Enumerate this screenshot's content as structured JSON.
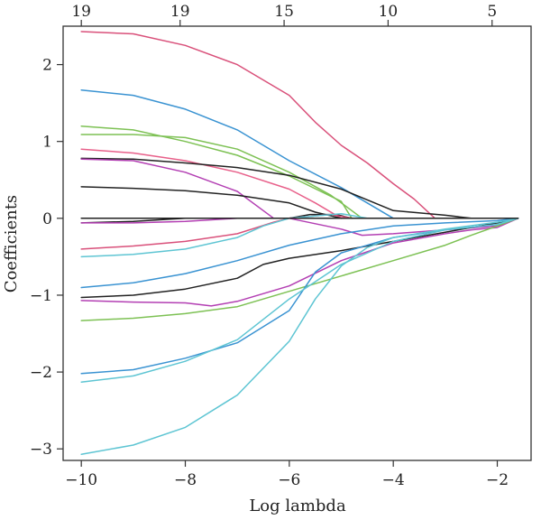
{
  "chart_data": {
    "type": "line",
    "xlabel": "Log lambda",
    "ylabel": "Coefficients",
    "xlim": [
      -10.35,
      -1.35
    ],
    "ylim": [
      -3.15,
      2.5
    ],
    "x_ticks": [
      -10,
      -8,
      -6,
      -4,
      -2
    ],
    "x_tick_labels": [
      "−10",
      "−8",
      "−6",
      "−4",
      "−2"
    ],
    "y_ticks": [
      -3,
      -2,
      -1,
      0,
      1,
      2
    ],
    "y_tick_labels": [
      "−3",
      "−2",
      "−1",
      "0",
      "1",
      "2"
    ],
    "top_axis": {
      "positions": [
        -10,
        -8.1,
        -6.1,
        -4.1,
        -2.1
      ],
      "labels": [
        "19",
        "19",
        "15",
        "10",
        "5"
      ]
    },
    "grid": false,
    "legend": "none",
    "series": [
      {
        "color": "#d9507a",
        "points": [
          [
            -10,
            2.43
          ],
          [
            -9,
            2.4
          ],
          [
            -8,
            2.25
          ],
          [
            -7,
            2.0
          ],
          [
            -6,
            1.6
          ],
          [
            -5.5,
            1.25
          ],
          [
            -5,
            0.95
          ],
          [
            -4.5,
            0.72
          ],
          [
            -4,
            0.45
          ],
          [
            -3.6,
            0.25
          ],
          [
            -3.2,
            0
          ]
        ]
      },
      {
        "color": "#3a93d2",
        "points": [
          [
            -10,
            1.67
          ],
          [
            -9,
            1.6
          ],
          [
            -8,
            1.42
          ],
          [
            -7,
            1.15
          ],
          [
            -6,
            0.75
          ],
          [
            -5,
            0.4
          ],
          [
            -4.5,
            0.2
          ],
          [
            -4,
            0
          ]
        ]
      },
      {
        "color": "#7dc154",
        "points": [
          [
            -10,
            1.2
          ],
          [
            -9,
            1.15
          ],
          [
            -8,
            1.0
          ],
          [
            -7,
            0.82
          ],
          [
            -6,
            0.55
          ],
          [
            -5,
            0.22
          ],
          [
            -4.8,
            0
          ]
        ]
      },
      {
        "color": "#7dc154",
        "points": [
          [
            -10,
            1.09
          ],
          [
            -9,
            1.09
          ],
          [
            -8,
            1.05
          ],
          [
            -7,
            0.9
          ],
          [
            -6,
            0.6
          ],
          [
            -5.2,
            0.3
          ],
          [
            -4.6,
            0
          ]
        ]
      },
      {
        "color": "#e8608a",
        "points": [
          [
            -10,
            0.9
          ],
          [
            -9,
            0.85
          ],
          [
            -8,
            0.75
          ],
          [
            -7,
            0.6
          ],
          [
            -6,
            0.38
          ],
          [
            -5.5,
            0.2
          ],
          [
            -5,
            0
          ]
        ]
      },
      {
        "color": "#222222",
        "points": [
          [
            -10,
            0.78
          ],
          [
            -9,
            0.77
          ],
          [
            -8,
            0.72
          ],
          [
            -7,
            0.66
          ],
          [
            -6,
            0.56
          ],
          [
            -5,
            0.38
          ],
          [
            -4,
            0.1
          ],
          [
            -3,
            0.04
          ],
          [
            -2.5,
            0
          ]
        ]
      },
      {
        "color": "#b33fb3",
        "points": [
          [
            -10,
            0.77
          ],
          [
            -9,
            0.75
          ],
          [
            -8,
            0.6
          ],
          [
            -7,
            0.35
          ],
          [
            -6.5,
            0.1
          ],
          [
            -6.3,
            0
          ]
        ]
      },
      {
        "color": "#222222",
        "points": [
          [
            -10,
            0.41
          ],
          [
            -9,
            0.39
          ],
          [
            -8,
            0.36
          ],
          [
            -7,
            0.3
          ],
          [
            -6,
            0.2
          ],
          [
            -5.5,
            0.08
          ],
          [
            -5,
            0
          ]
        ]
      },
      {
        "color": "#222222",
        "points": [
          [
            -10,
            -0.06
          ],
          [
            -9,
            -0.04
          ],
          [
            -8,
            0
          ],
          [
            -7.5,
            0
          ],
          [
            -6,
            0
          ],
          [
            -5.6,
            0.05
          ],
          [
            -5.1,
            0.05
          ],
          [
            -4.8,
            0
          ]
        ]
      },
      {
        "color": "#b33fb3",
        "points": [
          [
            -10,
            -0.06
          ],
          [
            -9,
            -0.06
          ],
          [
            -8,
            -0.04
          ],
          [
            -7,
            0
          ],
          [
            -6,
            0
          ],
          [
            -5,
            -0.14
          ],
          [
            -4.6,
            -0.22
          ],
          [
            -4,
            -0.2
          ],
          [
            -3,
            -0.15
          ],
          [
            -2,
            -0.1
          ],
          [
            -1.6,
            0
          ]
        ]
      },
      {
        "color": "#d9507a",
        "points": [
          [
            -10,
            -0.4
          ],
          [
            -9,
            -0.36
          ],
          [
            -8,
            -0.3
          ],
          [
            -7,
            -0.2
          ],
          [
            -6.3,
            -0.05
          ],
          [
            -6,
            0
          ],
          [
            -5.2,
            0.05
          ],
          [
            -4.8,
            0
          ]
        ]
      },
      {
        "color": "#5ec5d3",
        "points": [
          [
            -10,
            -0.5
          ],
          [
            -9,
            -0.47
          ],
          [
            -8,
            -0.4
          ],
          [
            -7,
            -0.25
          ],
          [
            -6.5,
            -0.1
          ],
          [
            -6,
            0
          ],
          [
            -5,
            0.06
          ],
          [
            -4.5,
            0
          ],
          [
            -4,
            0
          ]
        ]
      },
      {
        "color": "#3a93d2",
        "points": [
          [
            -10,
            -0.9
          ],
          [
            -9,
            -0.84
          ],
          [
            -8,
            -0.72
          ],
          [
            -7,
            -0.55
          ],
          [
            -6,
            -0.35
          ],
          [
            -5,
            -0.2
          ],
          [
            -4,
            -0.1
          ],
          [
            -3,
            -0.06
          ],
          [
            -2,
            -0.03
          ],
          [
            -1.6,
            0
          ]
        ]
      },
      {
        "color": "#222222",
        "points": [
          [
            -10,
            -1.03
          ],
          [
            -9,
            -1.0
          ],
          [
            -8,
            -0.92
          ],
          [
            -7,
            -0.78
          ],
          [
            -6.5,
            -0.6
          ],
          [
            -6,
            -0.52
          ],
          [
            -5,
            -0.42
          ],
          [
            -4,
            -0.3
          ],
          [
            -3,
            -0.18
          ],
          [
            -2.5,
            -0.12
          ],
          [
            -2,
            -0.06
          ],
          [
            -1.6,
            0
          ]
        ]
      },
      {
        "color": "#b33fb3",
        "points": [
          [
            -10,
            -1.07
          ],
          [
            -9,
            -1.09
          ],
          [
            -8,
            -1.1
          ],
          [
            -7.5,
            -1.14
          ],
          [
            -7,
            -1.08
          ],
          [
            -6,
            -0.88
          ],
          [
            -5,
            -0.55
          ],
          [
            -4,
            -0.32
          ],
          [
            -3,
            -0.2
          ],
          [
            -2.5,
            -0.15
          ],
          [
            -2,
            -0.12
          ],
          [
            -1.6,
            0
          ]
        ]
      },
      {
        "color": "#7dc154",
        "points": [
          [
            -10,
            -1.33
          ],
          [
            -9,
            -1.3
          ],
          [
            -8,
            -1.24
          ],
          [
            -7,
            -1.15
          ],
          [
            -6,
            -0.95
          ],
          [
            -5,
            -0.75
          ],
          [
            -4,
            -0.55
          ],
          [
            -3,
            -0.35
          ],
          [
            -2.5,
            -0.22
          ],
          [
            -2,
            -0.1
          ],
          [
            -1.6,
            0
          ]
        ]
      },
      {
        "color": "#3a93d2",
        "points": [
          [
            -10,
            -2.02
          ],
          [
            -9,
            -1.97
          ],
          [
            -8,
            -1.82
          ],
          [
            -7,
            -1.62
          ],
          [
            -6,
            -1.2
          ],
          [
            -5.5,
            -0.7
          ],
          [
            -5,
            -0.45
          ],
          [
            -4,
            -0.25
          ],
          [
            -3,
            -0.15
          ],
          [
            -2,
            -0.08
          ],
          [
            -1.6,
            0
          ]
        ]
      },
      {
        "color": "#5ec5d3",
        "points": [
          [
            -10,
            -2.13
          ],
          [
            -9,
            -2.05
          ],
          [
            -8,
            -1.86
          ],
          [
            -7,
            -1.58
          ],
          [
            -6,
            -1.05
          ],
          [
            -5,
            -0.6
          ],
          [
            -4,
            -0.3
          ],
          [
            -3,
            -0.15
          ],
          [
            -2,
            -0.08
          ],
          [
            -1.6,
            0
          ]
        ]
      },
      {
        "color": "#5ec5d3",
        "points": [
          [
            -10,
            -3.07
          ],
          [
            -9,
            -2.95
          ],
          [
            -8,
            -2.72
          ],
          [
            -7,
            -2.3
          ],
          [
            -6,
            -1.6
          ],
          [
            -5.5,
            -1.05
          ],
          [
            -5,
            -0.62
          ],
          [
            -4.5,
            -0.38
          ],
          [
            -4,
            -0.25
          ],
          [
            -3,
            -0.14
          ],
          [
            -2,
            -0.05
          ],
          [
            -1.6,
            0
          ]
        ]
      },
      {
        "color": "#222222",
        "points": [
          [
            -10,
            0
          ],
          [
            -9,
            0
          ],
          [
            -8,
            0
          ],
          [
            -7,
            0
          ],
          [
            -6,
            0
          ],
          [
            -5,
            0
          ],
          [
            -4,
            0
          ],
          [
            -3,
            0
          ],
          [
            -2,
            0
          ],
          [
            -1.6,
            0
          ]
        ]
      }
    ]
  }
}
